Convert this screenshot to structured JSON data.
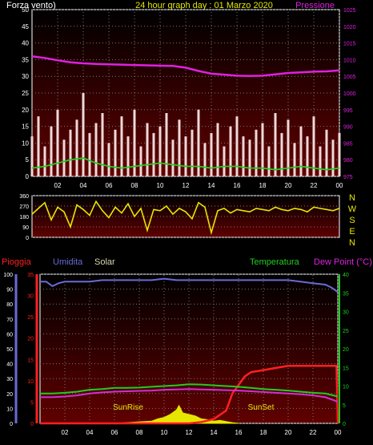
{
  "header": {
    "left_label": "Forza vento)",
    "title": "24 hour graph day : 01 Marzo 2020",
    "right_label": "Pressione"
  },
  "mid_labels": {
    "rain": "Pioggia",
    "humidity": "Umidita",
    "solar": "Solar",
    "temperature": "Temperatura",
    "dewpoint": "Dew Point (°C)"
  },
  "annotations": {
    "sunrise": "SunRise",
    "sunset": "SunSet"
  },
  "compass": [
    "N",
    "W",
    "S",
    "E",
    "N"
  ],
  "colors": {
    "wind": "#ffffff",
    "gust": "#f0d8d8",
    "avg_wind": "#22cc22",
    "pressure": "#e020e0",
    "direction": "#e6e600",
    "rain": "#ff2020",
    "humidity": "#6a6ad8",
    "solar": "#e6e600",
    "temperature": "#22cc22",
    "dewpoint": "#d030d0",
    "plot_bg_top": "#000000",
    "plot_bg_bottom": "#600000"
  },
  "chart_data": [
    {
      "type": "line",
      "name": "wind-pressure",
      "x_ticks": [
        "02",
        "04",
        "06",
        "08",
        "10",
        "12",
        "14",
        "16",
        "18",
        "20",
        "22",
        "00"
      ],
      "x_range": [
        0,
        24
      ],
      "y_left_ticks": [
        "0",
        "5",
        "10",
        "15",
        "20",
        "25",
        "30",
        "35",
        "40",
        "45",
        "50"
      ],
      "y_left_range": [
        0,
        50
      ],
      "y_right_ticks": [
        "975",
        "980",
        "985",
        "990",
        "995",
        "1000",
        "1005",
        "1010",
        "1015",
        "1020",
        "1025"
      ],
      "y_right_range": [
        975,
        1025
      ],
      "series": [
        {
          "key": "pressure",
          "axis": "right",
          "x": [
            0,
            1,
            2,
            3,
            4,
            5,
            6,
            7,
            8,
            9,
            10,
            11,
            12,
            13,
            14,
            15,
            16,
            17,
            18,
            19,
            20,
            21,
            22,
            23,
            24
          ],
          "values": [
            1011,
            1010.5,
            1009.8,
            1009.2,
            1008.9,
            1008.7,
            1008.6,
            1008.5,
            1008.4,
            1008.3,
            1008.2,
            1008.1,
            1007.6,
            1006.6,
            1005.8,
            1005.5,
            1005.2,
            1005.1,
            1005.2,
            1005.6,
            1006,
            1006.2,
            1006.4,
            1006.5,
            1006.8
          ]
        },
        {
          "key": "avg_wind",
          "axis": "left",
          "x": [
            0,
            1,
            2,
            3,
            4,
            5,
            6,
            7,
            8,
            9,
            10,
            11,
            12,
            13,
            14,
            15,
            16,
            17,
            18,
            19,
            20,
            21,
            22,
            23,
            24
          ],
          "values": [
            2.5,
            3,
            4,
            5,
            5.5,
            4,
            3,
            2.5,
            3,
            3.5,
            4,
            3.5,
            3,
            3,
            2.5,
            3,
            3,
            2.5,
            2.5,
            2,
            2.5,
            3,
            2.5,
            2,
            2.5
          ]
        }
      ],
      "wind_bars": {
        "x": [
          0,
          0.5,
          1,
          1.5,
          2,
          2.5,
          3,
          3.5,
          4,
          4.5,
          5,
          5.5,
          6,
          6.5,
          7,
          7.5,
          8,
          8.5,
          9,
          9.5,
          10,
          10.5,
          11,
          11.5,
          12,
          12.5,
          13,
          13.5,
          14,
          14.5,
          15,
          15.5,
          16,
          16.5,
          17,
          17.5,
          18,
          18.5,
          19,
          19.5,
          20,
          20.5,
          21,
          21.5,
          22,
          22.5,
          23,
          23.5,
          24
        ],
        "values": [
          12,
          18,
          9,
          15,
          20,
          11,
          14,
          17,
          25,
          13,
          16,
          19,
          10,
          14,
          18,
          12,
          20,
          9,
          16,
          13,
          15,
          19,
          11,
          17,
          12,
          14,
          20,
          10,
          13,
          16,
          9,
          15,
          18,
          12,
          11,
          14,
          16,
          9,
          19,
          13,
          17,
          10,
          15,
          12,
          18,
          9,
          14,
          11,
          13
        ]
      }
    },
    {
      "type": "line",
      "name": "wind-direction",
      "x_ticks": [
        "02",
        "04",
        "06",
        "08",
        "10",
        "12",
        "14",
        "16",
        "18",
        "20",
        "22",
        "00"
      ],
      "x_range": [
        0,
        24
      ],
      "y_ticks": [
        "0",
        "90",
        "180",
        "270",
        "360"
      ],
      "y_range": [
        0,
        360
      ],
      "series": [
        {
          "key": "direction",
          "x": [
            0,
            0.5,
            1,
            1.5,
            2,
            2.5,
            3,
            3.5,
            4,
            4.5,
            5,
            5.5,
            6,
            6.5,
            7,
            7.5,
            8,
            8.5,
            9,
            9.5,
            10,
            10.5,
            11,
            11.5,
            12,
            12.5,
            13,
            13.5,
            14,
            14.5,
            15,
            15.5,
            16,
            16.5,
            17,
            17.5,
            18,
            18.5,
            19,
            19.5,
            20,
            20.5,
            21,
            21.5,
            22,
            22.5,
            23,
            23.5,
            24
          ],
          "values": [
            200,
            250,
            300,
            150,
            260,
            220,
            90,
            280,
            240,
            190,
            310,
            230,
            170,
            260,
            210,
            290,
            180,
            250,
            60,
            240,
            230,
            270,
            200,
            250,
            220,
            160,
            300,
            260,
            40,
            230,
            250,
            210,
            240,
            230,
            220,
            250,
            240,
            230,
            260,
            240,
            230,
            250,
            240,
            220,
            260,
            250,
            240,
            230,
            250
          ]
        }
      ]
    },
    {
      "type": "line",
      "name": "rain-humidity-solar-temperature",
      "x_ticks": [
        "02",
        "04",
        "06",
        "08",
        "10",
        "12",
        "14",
        "16",
        "18",
        "20",
        "22",
        "00"
      ],
      "x_range": [
        0,
        24
      ],
      "y_left_ticks": [
        "0",
        "10",
        "20",
        "30",
        "40",
        "50",
        "60",
        "70",
        "80",
        "90",
        "100"
      ],
      "y_left_range": [
        0,
        100
      ],
      "y_rain_ticks": [
        "0",
        "5",
        "10",
        "15",
        "20",
        "25",
        "30",
        "35"
      ],
      "y_rain_range": [
        0,
        35
      ],
      "y_right_ticks": [
        "0",
        "5",
        "10",
        "15",
        "20",
        "25",
        "30",
        "35",
        "40"
      ],
      "y_right_range": [
        0,
        40
      ],
      "series": [
        {
          "key": "humidity",
          "axis": "left",
          "x": [
            0,
            0.5,
            1,
            1.5,
            2,
            3,
            4,
            5,
            6,
            7,
            8,
            9,
            10,
            11,
            12,
            13,
            14,
            15,
            16,
            17,
            18,
            19,
            20,
            21,
            22,
            23,
            23.5,
            24
          ],
          "values": [
            95,
            95,
            92,
            94,
            95,
            95,
            95,
            96,
            96,
            96,
            96,
            96,
            97,
            96,
            96,
            96,
            96,
            96,
            96,
            96,
            96,
            96,
            96,
            95,
            94,
            93,
            91,
            88
          ]
        },
        {
          "key": "rain",
          "axis": "rain",
          "x": [
            0,
            12,
            13,
            14,
            15,
            15.5,
            16,
            16.5,
            17,
            18,
            19,
            20,
            21,
            22,
            23,
            23.9,
            24
          ],
          "values": [
            0,
            0,
            0.3,
            1,
            3,
            7,
            9,
            11,
            12,
            12.5,
            13,
            13.5,
            13.5,
            13.5,
            13.5,
            13.5,
            0
          ]
        },
        {
          "key": "temperature",
          "axis": "right",
          "x": [
            0,
            1,
            2,
            3,
            4,
            5,
            6,
            7,
            8,
            9,
            10,
            11,
            12,
            13,
            14,
            15,
            16,
            17,
            18,
            19,
            20,
            21,
            22,
            23,
            24
          ],
          "values": [
            8,
            8,
            8.2,
            8.5,
            9,
            9.2,
            9.5,
            9.5,
            9.6,
            9.8,
            10,
            10.2,
            10.5,
            10.4,
            10.2,
            10,
            9.8,
            9.5,
            9.2,
            9,
            8.8,
            8.5,
            8.2,
            8,
            7.2
          ]
        },
        {
          "key": "dewpoint",
          "axis": "right",
          "x": [
            0,
            1,
            2,
            3,
            4,
            5,
            6,
            7,
            8,
            9,
            10,
            11,
            12,
            13,
            14,
            15,
            16,
            17,
            18,
            19,
            20,
            21,
            22,
            23,
            24
          ],
          "values": [
            7,
            7,
            7.2,
            7.5,
            8,
            8.3,
            8.5,
            8.6,
            8.7,
            8.8,
            9,
            9.1,
            9.2,
            9.1,
            9,
            8.9,
            8.8,
            8.6,
            8.4,
            8.2,
            8,
            7.8,
            7.5,
            7,
            5.8
          ]
        },
        {
          "key": "solar",
          "axis": "left",
          "x": [
            6,
            7,
            8,
            9,
            9.5,
            10,
            10.5,
            11,
            11.2,
            11.5,
            12,
            12.5,
            13,
            13.5,
            14,
            14.5,
            15,
            15.5,
            16
          ],
          "values": [
            0,
            0.5,
            1,
            1.5,
            3,
            4,
            6,
            9,
            12,
            7,
            6,
            5,
            3,
            2.5,
            1.5,
            2,
            1.2,
            0.5,
            0
          ]
        }
      ]
    }
  ]
}
